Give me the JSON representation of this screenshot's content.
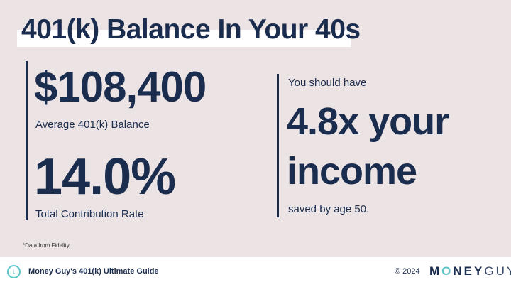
{
  "title": "401(k) Balance In Your 40s",
  "left": {
    "balance": "$108,400",
    "balance_label": "Average 401(k) Balance",
    "rate": "14.0%",
    "rate_label": "Total Contribution Rate"
  },
  "right": {
    "intro": "You should have",
    "line1": "4.8x your",
    "line2": "income",
    "outro": "saved by age 50."
  },
  "footnote": "*Data from Fidelity",
  "footer": {
    "guide_title": "Money Guy's 401(k) Ultimate Guide",
    "copyright": "© 2024",
    "logo": "MONEYGUY",
    "icon": "download-bubble-icon"
  },
  "colors": {
    "navy": "#1b2d4f",
    "teal": "#5fc4c8",
    "background": "#ece4e4"
  }
}
